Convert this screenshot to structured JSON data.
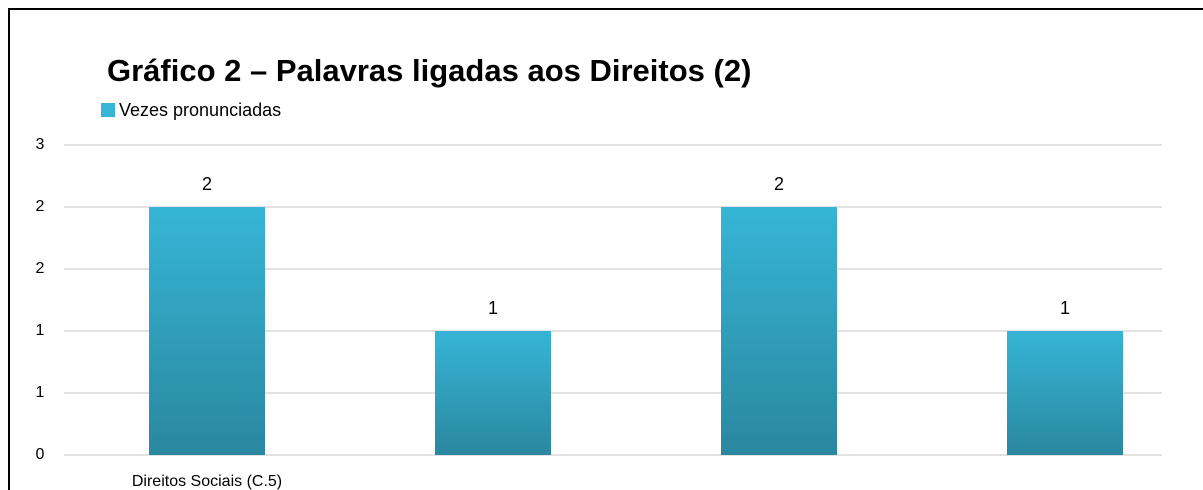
{
  "chart_data": {
    "type": "bar",
    "title": "Gráfico 2 – Palavras ligadas aos Direitos (2)",
    "categories": [
      "Direitos Sociais (C.5)",
      null,
      null,
      null
    ],
    "series": [
      {
        "name": "Vezes pronunciadas",
        "color": "#36b5d6",
        "values": [
          2,
          1,
          2,
          1
        ]
      }
    ],
    "ylim": [
      0,
      2.5
    ],
    "yticks": [
      0,
      {
        "value": 0.5,
        "label": "1"
      },
      1,
      {
        "value": 1.5,
        "label": "2"
      },
      2,
      {
        "value": 2.5,
        "label": "3"
      }
    ],
    "grid": true,
    "legend": "top-left"
  }
}
